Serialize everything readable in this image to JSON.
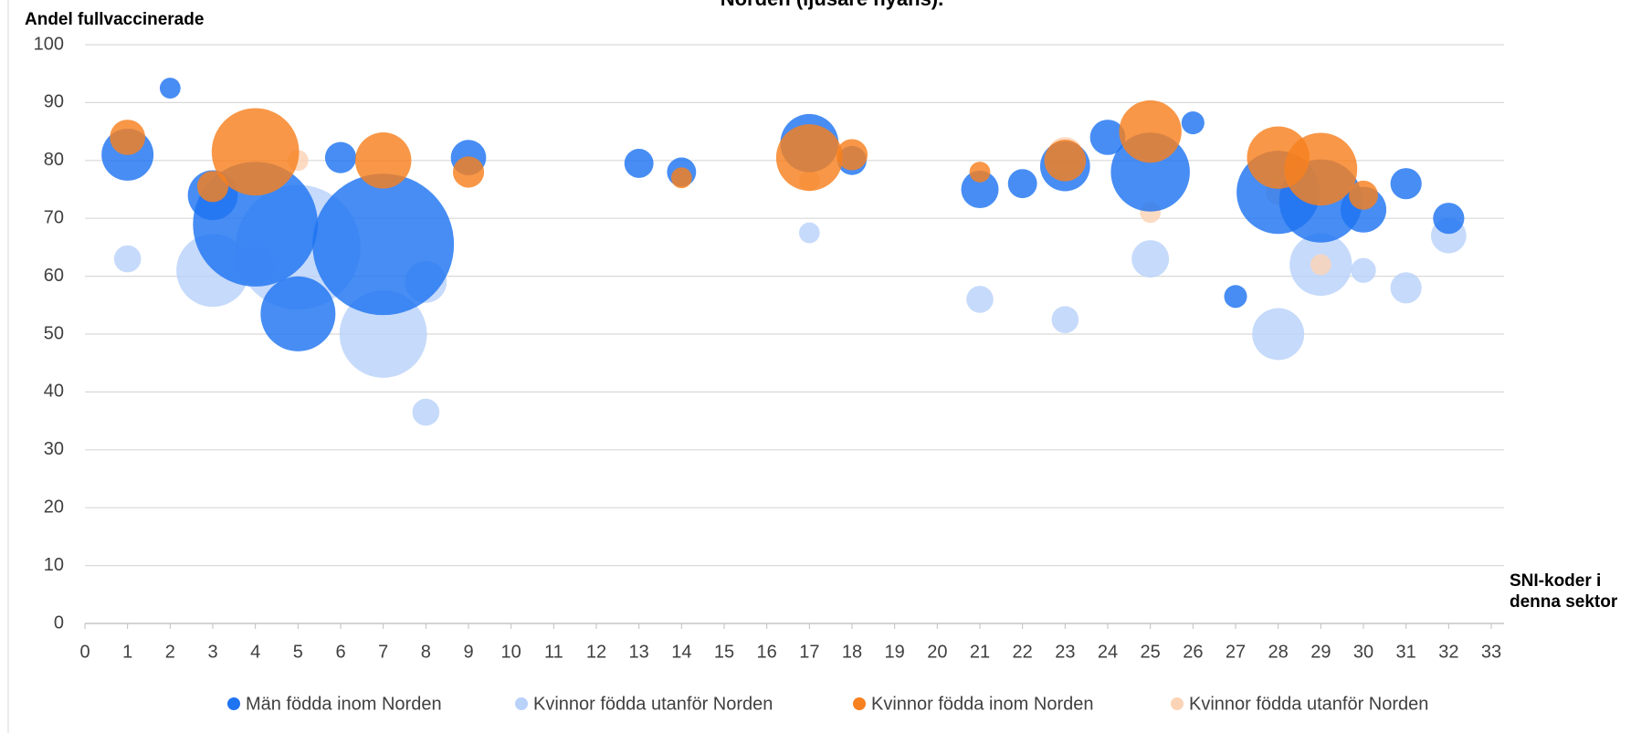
{
  "chart_data": {
    "type": "bubble",
    "title": "Norden (ljusare nyans).",
    "y_label": "Andel fullvaccinerade",
    "x_label": "SNI-koder i denna sektor",
    "xlim": [
      0,
      33
    ],
    "xticks": [
      0,
      1,
      2,
      3,
      4,
      5,
      6,
      7,
      8,
      9,
      10,
      11,
      12,
      13,
      14,
      15,
      16,
      17,
      18,
      19,
      20,
      21,
      22,
      23,
      24,
      25,
      26,
      27,
      28,
      29,
      30,
      31,
      32,
      33
    ],
    "ylim": [
      0,
      100
    ],
    "yticks": [
      0,
      10,
      20,
      30,
      40,
      50,
      60,
      70,
      80,
      90,
      100
    ],
    "grid": true,
    "legend": "bottom",
    "series": [
      {
        "name": "Män födda inom Norden",
        "color": "#1f74f2",
        "x": [
          1,
          2,
          3,
          4,
          5,
          6,
          7,
          9,
          13,
          14,
          17,
          18,
          21,
          22,
          23,
          24,
          25,
          26,
          27,
          28,
          29,
          30,
          31,
          32
        ],
        "values": [
          81,
          92.5,
          74,
          69,
          53.5,
          80.5,
          65.5,
          80.5,
          79.5,
          78,
          83,
          80,
          75,
          76,
          79,
          84,
          78,
          86.5,
          56.5,
          74.5,
          73,
          71.5,
          76,
          70
        ],
        "size": [
          625,
          100,
          576,
          3600,
          1296,
          225,
          4624,
          289,
          196,
          196,
          784,
          196,
          324,
          196,
          576,
          289,
          1444,
          121,
          121,
          1600,
          1600,
          484,
          225,
          225
        ]
      },
      {
        "name": "Kvinnor födda utanför Norden",
        "color": "#b9d2fa",
        "x": [
          1,
          3,
          4,
          5,
          7,
          8,
          8,
          17,
          21,
          23,
          25,
          28,
          29,
          30,
          31,
          32
        ],
        "values": [
          63,
          61,
          62,
          65,
          50,
          59,
          36.5,
          67.5,
          56,
          52.5,
          63,
          50,
          62,
          61,
          58,
          67
        ],
        "size": [
          169,
          1225,
          324,
          3600,
          1764,
          400,
          169,
          100,
          169,
          169,
          324,
          625,
          900,
          144,
          225,
          289
        ]
      },
      {
        "name": "Kvinnor födda inom Norden",
        "color": "#f7801f",
        "x": [
          1,
          3,
          4,
          7,
          9,
          14,
          17,
          18,
          21,
          23,
          25,
          28,
          29,
          30
        ],
        "values": [
          84,
          75.5,
          81.5,
          80,
          78,
          77,
          80.5,
          81,
          78,
          80,
          85,
          80.5,
          78.5,
          74
        ],
        "size": [
          289,
          225,
          1764,
          729,
          225,
          100,
          1024,
          225,
          100,
          400,
          900,
          900,
          1225,
          196
        ]
      },
      {
        "name": "Kvinnor födda utanför Norden",
        "color": "#fbd3b6",
        "x": [
          5,
          14,
          17,
          23,
          25,
          28,
          29
        ],
        "values": [
          80,
          77,
          76.5,
          81,
          71,
          74.5,
          62
        ],
        "size": [
          100,
          81,
          100,
          289,
          100,
          144,
          100
        ]
      }
    ]
  }
}
